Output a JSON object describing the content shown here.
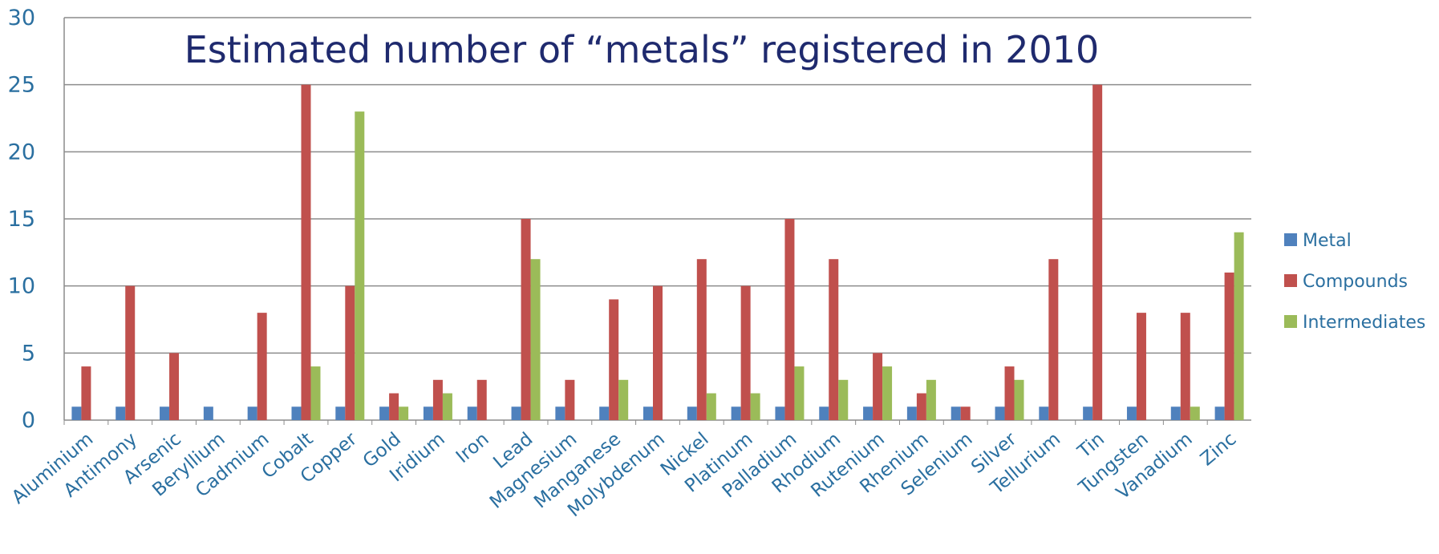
{
  "chart_data": {
    "type": "bar",
    "title": "Estimated number of “metals” registered in 2010",
    "xlabel": "",
    "ylabel": "",
    "ylim": [
      0,
      30
    ],
    "yticks": [
      "0",
      "5",
      "10",
      "15",
      "20",
      "25",
      "30"
    ],
    "grid": true,
    "legend_position": "right",
    "categories": [
      "Aluminium",
      "Antimony",
      "Arsenic",
      "Beryllium",
      "Cadmium",
      "Cobalt",
      "Copper",
      "Gold",
      "Iridium",
      "Iron",
      "Lead",
      "Magnesium",
      "Manganese",
      "Molybdenum",
      "Nickel",
      "Platinum",
      "Palladium",
      "Rhodium",
      "Rutenium",
      "Rhenium",
      "Selenium",
      "Silver",
      "Tellurium",
      "Tin",
      "Tungsten",
      "Vanadium",
      "Zinc"
    ],
    "series": [
      {
        "name": "Metal",
        "color": "#4f81bd",
        "values": [
          1,
          1,
          1,
          1,
          1,
          1,
          1,
          1,
          1,
          1,
          1,
          1,
          1,
          1,
          1,
          1,
          1,
          1,
          1,
          1,
          1,
          1,
          1,
          1,
          1,
          1,
          1
        ]
      },
      {
        "name": "Compounds",
        "color": "#c0504d",
        "values": [
          4,
          10,
          5,
          0,
          8,
          25,
          10,
          2,
          3,
          3,
          15,
          3,
          9,
          10,
          12,
          10,
          15,
          12,
          5,
          2,
          1,
          4,
          12,
          25,
          8,
          8,
          11
        ]
      },
      {
        "name": "Intermediates",
        "color": "#9bbb59",
        "values": [
          0,
          0,
          0,
          0,
          0,
          4,
          23,
          1,
          2,
          0,
          12,
          0,
          3,
          0,
          2,
          2,
          4,
          3,
          4,
          3,
          0,
          3,
          0,
          0,
          0,
          1,
          14
        ]
      }
    ]
  }
}
